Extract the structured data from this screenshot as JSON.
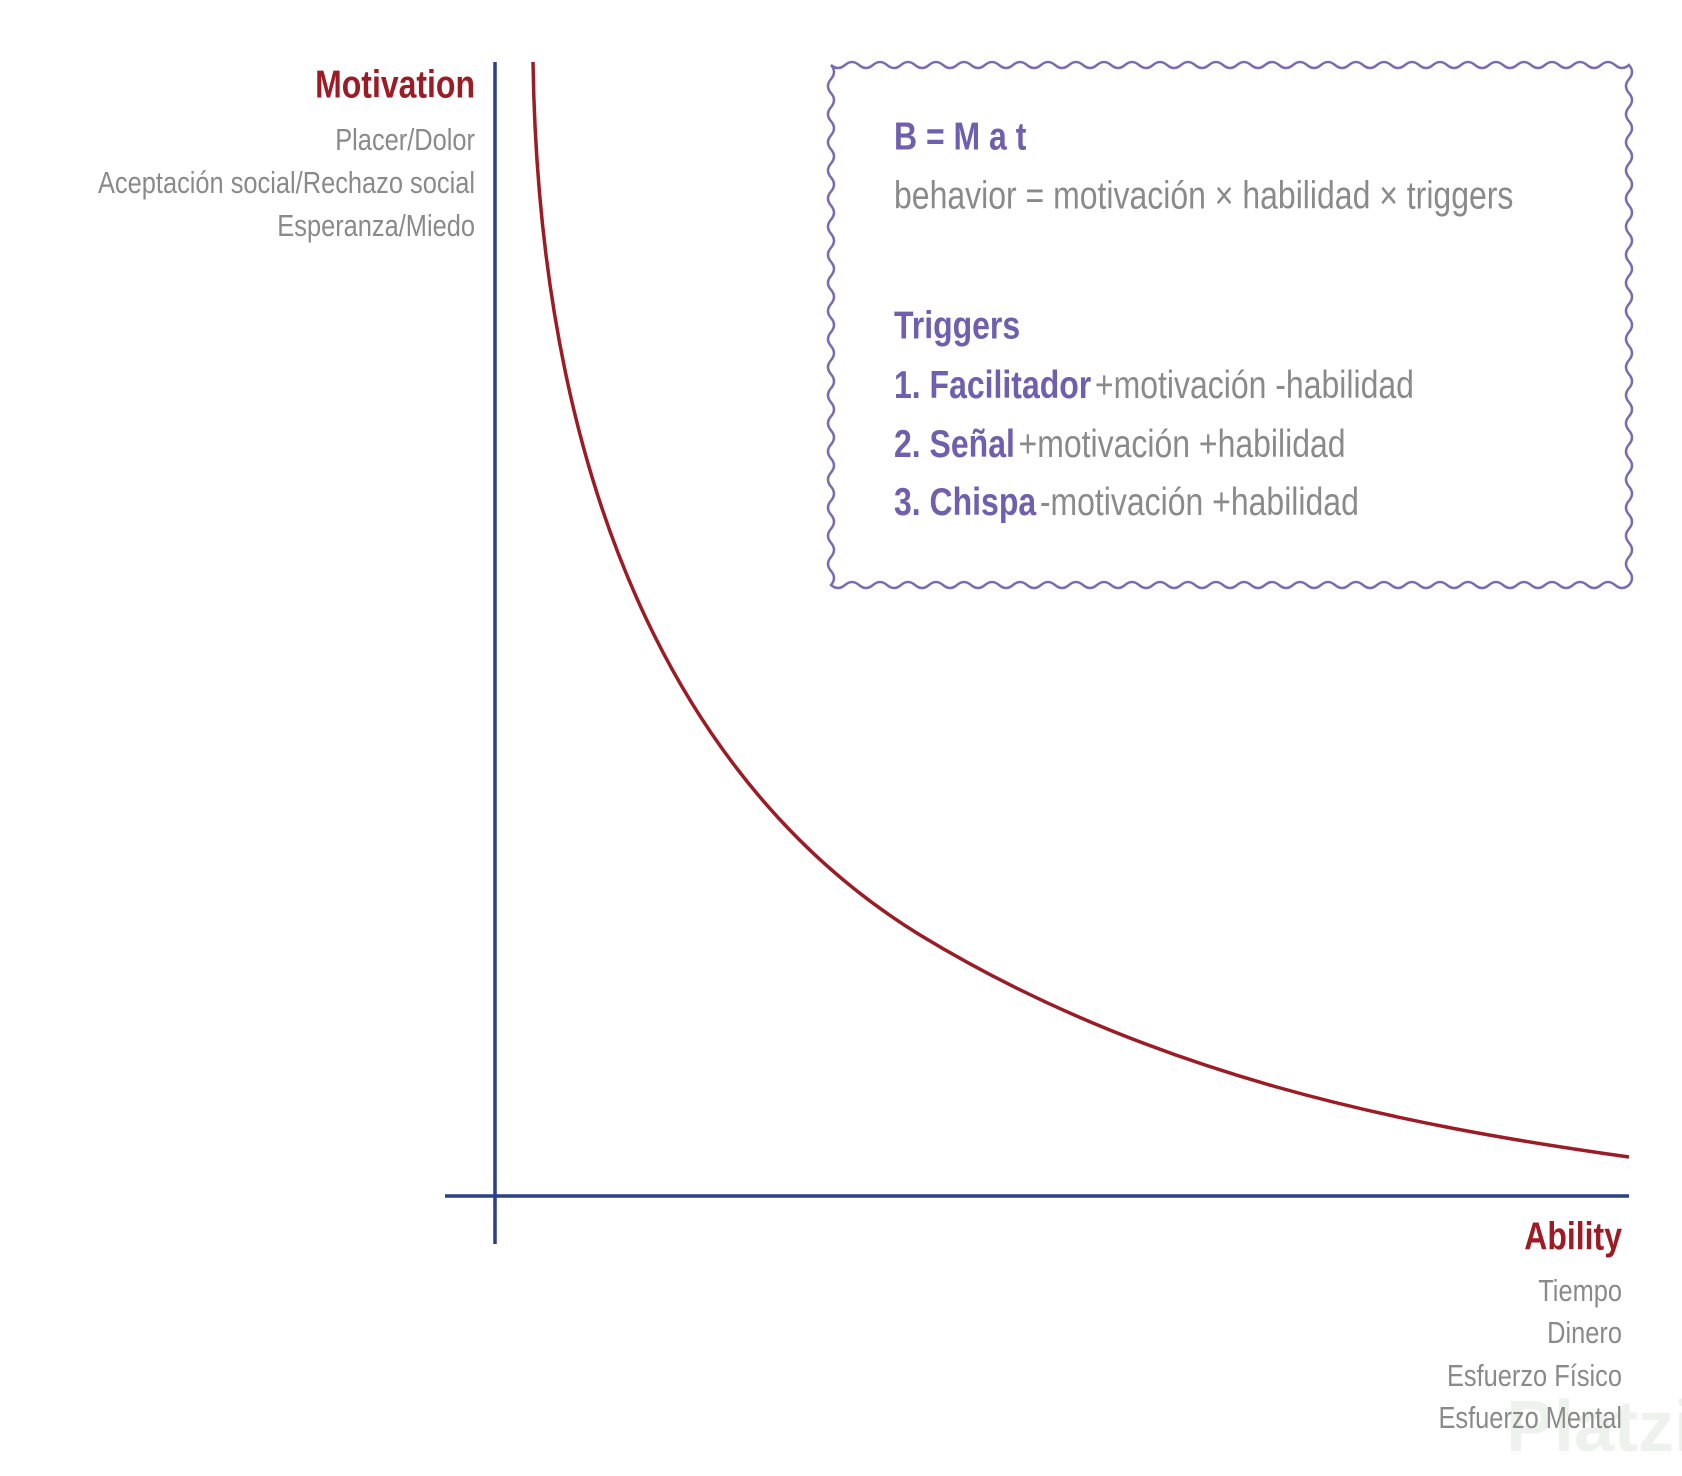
{
  "y_axis": {
    "title": "Motivation",
    "items": [
      "Placer/Dolor",
      "Aceptación social/Rechazo social",
      "Esperanza/Miedo"
    ]
  },
  "x_axis": {
    "title": "Ability",
    "items": [
      "Tiempo",
      "Dinero",
      "Esfuerzo Físico",
      "Esfuerzo Mental"
    ]
  },
  "formula_box": {
    "formula": "B = M a t",
    "description": "behavior = motivación × habilidad × triggers",
    "triggers_title": "Triggers",
    "triggers": [
      {
        "name": "1. Facilitador",
        "effect": "+motivación -habilidad"
      },
      {
        "name": "2. Señal",
        "effect": "+motivación +habilidad"
      },
      {
        "name": "3. Chispa",
        "effect": "-motivación +habilidad"
      }
    ]
  },
  "watermark": "Platzi"
}
